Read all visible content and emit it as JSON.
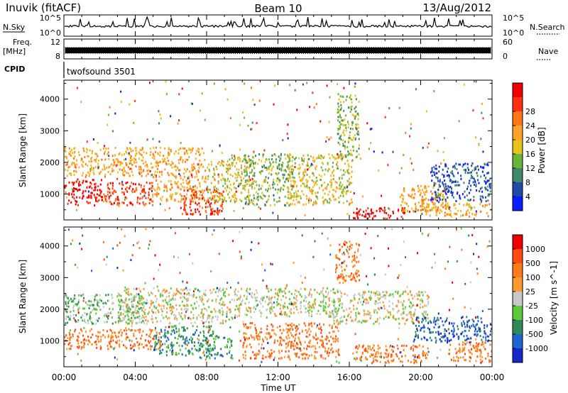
{
  "header": {
    "station": "Inuvik (fitACF)",
    "beam": "Beam 10",
    "date": "13/Aug/2012"
  },
  "strip_labels": {
    "nsky": "N.Sky",
    "nsky_ticks": [
      "10^5",
      "10^0"
    ],
    "nsearch": "N.Search",
    "nsearch_ticks": [
      "10^5",
      "10^0"
    ],
    "freq_label": "Freq.",
    "freq_unit": "[MHz]",
    "freq_ticks": [
      "12",
      "8"
    ],
    "nave_label": "Nave",
    "nave_ticks": [
      "60",
      "0"
    ],
    "cpid_label": "CPID",
    "cpid_value": "twofsound 3501"
  },
  "x_axis": {
    "label": "Time UT",
    "ticks": [
      "00:00",
      "04:00",
      "08:00",
      "12:00",
      "16:00",
      "20:00",
      "00:00"
    ]
  },
  "chart_data": [
    {
      "type": "heatmap",
      "title": "",
      "xlabel": "Time UT",
      "ylabel": "Slant Range [km]",
      "x_range_hours": [
        0,
        24
      ],
      "ylim": [
        180,
        4600
      ],
      "y_ticks": [
        1000,
        2000,
        3000,
        4000
      ],
      "colorbar": {
        "label": "Power [dB]",
        "ticks": [
          "4",
          "8",
          "12",
          "16",
          "20",
          "24",
          "28"
        ],
        "colors": [
          "#0b1bff",
          "#1f4aa8",
          "#3f8a6a",
          "#6cb33c",
          "#e6c21c",
          "#ffa22a",
          "#ff7518",
          "#ff3010",
          "#f20000"
        ]
      },
      "regions": [
        {
          "t": [
            0.0,
            2.2
          ],
          "r": [
            600,
            1500
          ],
          "level": 8
        },
        {
          "t": [
            0.0,
            4.8
          ],
          "r": [
            1500,
            2500
          ],
          "level": 5
        },
        {
          "t": [
            2.2,
            5.0
          ],
          "r": [
            600,
            1400
          ],
          "level": 7
        },
        {
          "t": [
            4.8,
            8.0
          ],
          "r": [
            700,
            2500
          ],
          "level": 5
        },
        {
          "t": [
            6.5,
            9.0
          ],
          "r": [
            300,
            1200
          ],
          "level": 7
        },
        {
          "t": [
            8.0,
            10.5
          ],
          "r": [
            700,
            2200
          ],
          "level": 4
        },
        {
          "t": [
            10.0,
            13.0
          ],
          "r": [
            600,
            2300
          ],
          "level": 3
        },
        {
          "t": [
            12.5,
            16.2
          ],
          "r": [
            600,
            2300
          ],
          "level": 4
        },
        {
          "t": [
            15.3,
            16.6
          ],
          "r": [
            2000,
            4200
          ],
          "level": 3
        },
        {
          "t": [
            16.2,
            19.2
          ],
          "r": [
            180,
            600
          ],
          "level": 8
        },
        {
          "t": [
            18.8,
            21.5
          ],
          "r": [
            400,
            1300
          ],
          "level": 5
        },
        {
          "t": [
            20.5,
            24.0
          ],
          "r": [
            700,
            2000
          ],
          "level": 1
        },
        {
          "t": [
            20.0,
            24.0
          ],
          "r": [
            250,
            750
          ],
          "level": 5
        }
      ]
    },
    {
      "type": "heatmap",
      "title": "",
      "xlabel": "Time UT",
      "ylabel": "Slant Range [km]",
      "x_range_hours": [
        0,
        24
      ],
      "ylim": [
        180,
        4600
      ],
      "y_ticks": [
        1000,
        2000,
        3000,
        4000
      ],
      "colorbar": {
        "label": "Velocity [m s^-1]",
        "ticks": [
          "1000",
          "500",
          "100",
          "25",
          "-25",
          "-100",
          "-500",
          "-1000"
        ],
        "colors": [
          "#1428c8",
          "#1e64d2",
          "#2e8b57",
          "#5cc83a",
          "#c8c8c8",
          "#ff9a30",
          "#ff7a18",
          "#ff4a10",
          "#ee0000"
        ]
      },
      "regions": [
        {
          "t": [
            0.0,
            5.5
          ],
          "r": [
            700,
            1400
          ],
          "level": 6
        },
        {
          "t": [
            0.0,
            4.5
          ],
          "r": [
            1500,
            2500
          ],
          "level": 3
        },
        {
          "t": [
            3.0,
            9.5
          ],
          "r": [
            1500,
            2700
          ],
          "level": 4
        },
        {
          "t": [
            5.0,
            8.5
          ],
          "r": [
            500,
            1500
          ],
          "level": 2
        },
        {
          "t": [
            7.5,
            9.5
          ],
          "r": [
            400,
            1200
          ],
          "level": 2
        },
        {
          "t": [
            9.5,
            15.5
          ],
          "r": [
            1700,
            2700
          ],
          "level": 4
        },
        {
          "t": [
            10.0,
            15.5
          ],
          "r": [
            400,
            1600
          ],
          "level": 6
        },
        {
          "t": [
            15.0,
            20.5
          ],
          "r": [
            1500,
            2600
          ],
          "level": 4
        },
        {
          "t": [
            15.2,
            16.6
          ],
          "r": [
            2800,
            4200
          ],
          "level": 6
        },
        {
          "t": [
            16.3,
            20.5
          ],
          "r": [
            250,
            900
          ],
          "level": 6
        },
        {
          "t": [
            19.5,
            24.0
          ],
          "r": [
            900,
            1800
          ],
          "level": 1
        },
        {
          "t": [
            21.5,
            24.0
          ],
          "r": [
            300,
            1000
          ],
          "level": 6
        }
      ]
    }
  ]
}
